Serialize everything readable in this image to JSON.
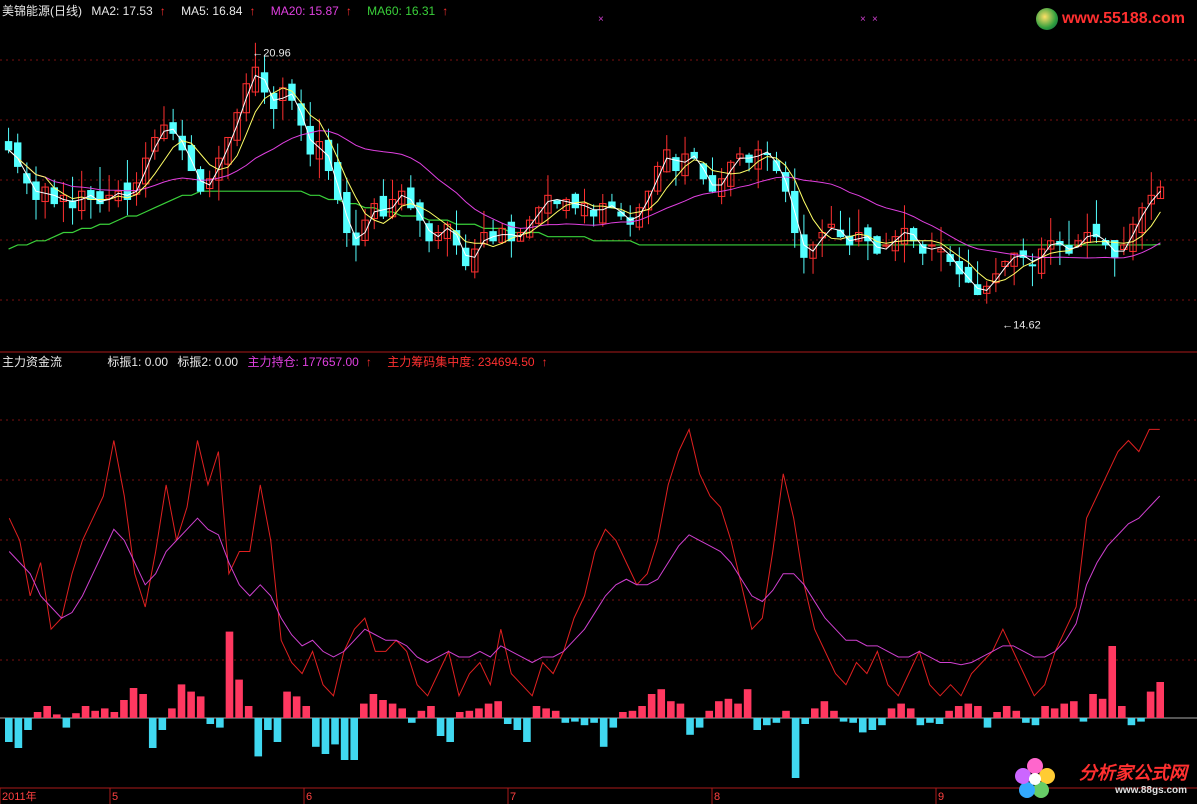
{
  "header_top": {
    "stock_name": "美锦能源(日线)",
    "ma2": "MA2: 17.53",
    "ma5": "MA5: 16.84",
    "ma20": "MA20: 15.87",
    "ma60": "MA60: 16.31",
    "arrow": "↑"
  },
  "header_bottom": {
    "indicator_name": "主力资金流",
    "scale1": "标振1: 0.00",
    "scale2": "标振2: 0.00",
    "holding": "主力持仓: 177657.00",
    "concentration": "主力筹码集中度: 234694.50",
    "arrow": "↑"
  },
  "annotations": {
    "high_label": "20.96",
    "low_label": "14.62"
  },
  "x_axis_labels": [
    "2011年",
    "5",
    "6",
    "7",
    "8",
    "9"
  ],
  "logo_top": "www.55188.com",
  "logo_bottom_cn": "分析家公式网",
  "logo_bottom_url": "www.88gs.com",
  "colors": {
    "up": "#ff3030",
    "down": "#54ffff",
    "ma2": "#ffffff",
    "ma5": "#ffff66",
    "ma20": "#e040e0",
    "ma60": "#3ad03a"
  },
  "chart_data": [
    {
      "type": "candlestick",
      "title": "美锦能源(日线)",
      "ylim": [
        14.0,
        21.5
      ],
      "high": 20.96,
      "low": 14.62,
      "grid": true,
      "series": [
        {
          "name": "MA2",
          "last": 17.53
        },
        {
          "name": "MA5",
          "last": 16.84
        },
        {
          "name": "MA20",
          "last": 15.87
        },
        {
          "name": "MA60",
          "last": 16.31
        }
      ],
      "close": [
        18.6,
        18.2,
        17.8,
        17.4,
        17.7,
        17.3,
        17.5,
        17.2,
        17.6,
        17.4,
        17.3,
        17.5,
        17.6,
        17.4,
        17.8,
        18.4,
        18.9,
        19.2,
        19.0,
        18.6,
        18.1,
        17.6,
        17.9,
        18.4,
        18.9,
        19.5,
        20.2,
        20.6,
        20.0,
        19.6,
        20.1,
        19.8,
        19.2,
        18.5,
        18.8,
        18.1,
        17.4,
        16.6,
        16.3,
        16.9,
        17.3,
        17.0,
        17.4,
        17.6,
        17.2,
        16.9,
        16.4,
        16.6,
        16.8,
        16.3,
        15.8,
        16.2,
        16.6,
        16.4,
        16.7,
        16.4,
        16.6,
        16.9,
        17.2,
        17.5,
        17.3,
        17.4,
        17.2,
        17.3,
        17.0,
        17.3,
        17.2,
        17.0,
        16.8,
        17.2,
        17.6,
        18.2,
        18.6,
        18.1,
        18.5,
        18.4,
        17.9,
        17.6,
        17.9,
        18.3,
        18.5,
        18.3,
        18.6,
        18.5,
        18.1,
        17.6,
        16.6,
        16.0,
        16.3,
        16.6,
        16.8,
        16.5,
        16.3,
        16.6,
        16.4,
        16.1,
        16.3,
        16.5,
        16.7,
        16.4,
        16.1,
        16.3,
        16.2,
        15.9,
        15.6,
        15.4,
        15.1,
        15.3,
        15.6,
        15.9,
        16.1,
        16.0,
        15.8,
        16.2,
        16.4,
        16.3,
        16.1,
        16.4,
        16.6,
        16.5,
        16.3,
        16.0,
        16.3,
        16.8,
        17.2,
        17.5,
        17.7
      ],
      "ma60": [
        16.2,
        16.3,
        16.3,
        16.4,
        16.4,
        16.5,
        16.6,
        16.6,
        16.7,
        16.7,
        16.8,
        16.8,
        16.9,
        17.0,
        17.0,
        17.1,
        17.2,
        17.3,
        17.4,
        17.5,
        17.5,
        17.6,
        17.6,
        17.6,
        17.6,
        17.6,
        17.6,
        17.6,
        17.6,
        17.6,
        17.6,
        17.6,
        17.6,
        17.5,
        17.5,
        17.4,
        17.4,
        17.3,
        17.3,
        17.2,
        17.2,
        17.1,
        17.1,
        17.0,
        17.0,
        17.0,
        16.9,
        16.9,
        16.9,
        16.8,
        16.8,
        16.8,
        16.7,
        16.7,
        16.7,
        16.6,
        16.6,
        16.6,
        16.6,
        16.5,
        16.5,
        16.5,
        16.5,
        16.5,
        16.4,
        16.4,
        16.4,
        16.4,
        16.4,
        16.3,
        16.3,
        16.3,
        16.3,
        16.3,
        16.3,
        16.3,
        16.3,
        16.3,
        16.3,
        16.3,
        16.3,
        16.3,
        16.3,
        16.3,
        16.3,
        16.3,
        16.3,
        16.3,
        16.3,
        16.3,
        16.3,
        16.3,
        16.3,
        16.3,
        16.3,
        16.3,
        16.3,
        16.3,
        16.3,
        16.3,
        16.3,
        16.3,
        16.3,
        16.3,
        16.3,
        16.3,
        16.3,
        16.3,
        16.3,
        16.3,
        16.3,
        16.3,
        16.3,
        16.3,
        16.3,
        16.3,
        16.3,
        16.3,
        16.3,
        16.3,
        16.3,
        16.3,
        16.3,
        16.3,
        16.3,
        16.3,
        16.31
      ]
    },
    {
      "type": "line",
      "title": "主力资金流",
      "ylim": [
        -60,
        300
      ],
      "series": [
        {
          "name": "主力筹码集中度",
          "values": [
            180,
            160,
            110,
            140,
            80,
            90,
            130,
            160,
            180,
            200,
            250,
            200,
            130,
            100,
            150,
            210,
            160,
            190,
            250,
            210,
            240,
            130,
            150,
            150,
            210,
            160,
            70,
            50,
            40,
            60,
            30,
            20,
            60,
            80,
            90,
            60,
            60,
            70,
            60,
            30,
            20,
            40,
            60,
            20,
            40,
            50,
            30,
            80,
            40,
            30,
            20,
            50,
            40,
            60,
            90,
            110,
            150,
            170,
            160,
            140,
            120,
            130,
            160,
            210,
            240,
            260,
            220,
            200,
            190,
            160,
            120,
            80,
            90,
            150,
            220,
            180,
            120,
            80,
            60,
            40,
            30,
            50,
            40,
            60,
            30,
            20,
            40,
            60,
            30,
            20,
            30,
            20,
            40,
            50,
            60,
            80,
            60,
            40,
            20,
            30,
            60,
            80,
            100,
            180,
            200,
            220,
            240,
            250,
            240,
            260,
            260
          ]
        },
        {
          "name": "主力持仓",
          "values": [
            150,
            140,
            130,
            110,
            100,
            90,
            95,
            110,
            130,
            150,
            170,
            160,
            140,
            120,
            130,
            150,
            160,
            170,
            180,
            170,
            165,
            140,
            120,
            110,
            120,
            110,
            90,
            75,
            65,
            70,
            60,
            55,
            60,
            70,
            80,
            75,
            70,
            70,
            65,
            55,
            50,
            55,
            60,
            55,
            55,
            60,
            55,
            65,
            60,
            55,
            50,
            55,
            55,
            60,
            70,
            80,
            95,
            110,
            120,
            125,
            120,
            120,
            125,
            140,
            155,
            165,
            160,
            155,
            150,
            140,
            125,
            110,
            105,
            115,
            130,
            130,
            120,
            105,
            90,
            80,
            70,
            70,
            65,
            65,
            60,
            55,
            55,
            60,
            55,
            50,
            50,
            48,
            50,
            55,
            60,
            65,
            65,
            60,
            55,
            55,
            60,
            70,
            85,
            120,
            140,
            155,
            165,
            175,
            180,
            190,
            200
          ]
        }
      ]
    },
    {
      "type": "bar",
      "title": "主力资金流",
      "ylim": [
        -60,
        300
      ],
      "values": [
        -20,
        -25,
        -10,
        5,
        10,
        3,
        -8,
        4,
        10,
        6,
        8,
        5,
        15,
        25,
        20,
        -25,
        -10,
        8,
        28,
        22,
        18,
        -5,
        -8,
        72,
        32,
        10,
        -32,
        -10,
        -20,
        22,
        18,
        10,
        -24,
        -30,
        -22,
        -35,
        -35,
        12,
        20,
        15,
        12,
        8,
        -4,
        6,
        10,
        -15,
        -20,
        5,
        6,
        8,
        12,
        14,
        -5,
        -10,
        -20,
        10,
        8,
        6,
        -4,
        -3,
        -6,
        -4,
        -24,
        -8,
        5,
        6,
        10,
        20,
        24,
        14,
        12,
        -14,
        -8,
        6,
        14,
        16,
        12,
        24,
        -10,
        -6,
        -4,
        6,
        -50,
        -5,
        8,
        14,
        6,
        -3,
        -4,
        -12,
        -10,
        -6,
        8,
        12,
        8,
        -6,
        -4,
        -5,
        6,
        10,
        12,
        10,
        -8,
        5,
        10,
        6,
        -4,
        -6,
        10,
        8,
        12,
        14,
        -3,
        20,
        16,
        60,
        10,
        -6,
        -3,
        22,
        30
      ]
    }
  ]
}
